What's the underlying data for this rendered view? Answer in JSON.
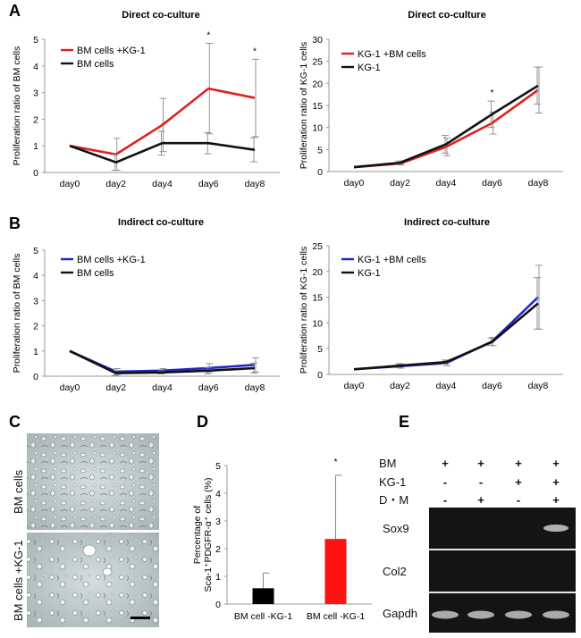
{
  "panels": {
    "A": "A",
    "B": "B",
    "C": "C",
    "D": "D",
    "E": "E"
  },
  "chart_data": [
    {
      "id": "A-left",
      "type": "line",
      "title": "Direct co-culture",
      "ylabel": "Proliferation ratio of BM cells",
      "categories": [
        "day0",
        "day2",
        "day4",
        "day6",
        "day8"
      ],
      "ylim": [
        0,
        5
      ],
      "yticks": [
        "0",
        "1",
        "2",
        "3",
        "4",
        "5"
      ],
      "series": [
        {
          "name": "BM cells +KG-1",
          "color": "#e0201f",
          "values": [
            1.0,
            0.68,
            1.78,
            3.15,
            2.8
          ],
          "err": [
            0,
            0.6,
            1.0,
            1.7,
            1.45
          ]
        },
        {
          "name": "BM cells",
          "color": "#111111",
          "values": [
            1.0,
            0.38,
            1.1,
            1.1,
            0.85
          ],
          "err": [
            0,
            0.3,
            0.45,
            0.4,
            0.45
          ]
        }
      ],
      "annotations": [
        {
          "x": "day6",
          "text": "*"
        },
        {
          "x": "day8",
          "text": "*"
        }
      ]
    },
    {
      "id": "A-right",
      "type": "line",
      "title": "Direct co-culture",
      "ylabel": "Proliferation ratio of KG-1 cells",
      "categories": [
        "day0",
        "day2",
        "day4",
        "day6",
        "day8"
      ],
      "ylim": [
        0,
        30
      ],
      "yticks": [
        "0",
        "5",
        "10",
        "15",
        "20",
        "25",
        "30"
      ],
      "series": [
        {
          "name": "KG-1 +BM cells",
          "color": "#e0201f",
          "values": [
            1.0,
            1.8,
            5.6,
            11.0,
            18.5
          ],
          "err": [
            0,
            0.3,
            2.0,
            2.5,
            5.2
          ]
        },
        {
          "name": "KG-1",
          "color": "#111111",
          "values": [
            1.0,
            2.0,
            6.2,
            13.0,
            19.5
          ],
          "err": [
            0,
            0.4,
            2.0,
            3.0,
            4.2
          ]
        }
      ],
      "annotations": [
        {
          "x": "day6",
          "text": "*"
        }
      ]
    },
    {
      "id": "B-left",
      "type": "line",
      "title": "Indirect co-culture",
      "ylabel": "Proliferation ratio of BM cells",
      "categories": [
        "day0",
        "day2",
        "day4",
        "day6",
        "day8"
      ],
      "ylim": [
        0,
        5
      ],
      "yticks": [
        "0",
        "1",
        "2",
        "3",
        "4",
        "5"
      ],
      "series": [
        {
          "name": "BM cells +KG-1",
          "color": "#1f26c8",
          "values": [
            1.0,
            0.18,
            0.22,
            0.32,
            0.45
          ],
          "err": [
            0,
            0.12,
            0.08,
            0.18,
            0.28
          ]
        },
        {
          "name": "BM cells",
          "color": "#111111",
          "values": [
            1.0,
            0.12,
            0.15,
            0.22,
            0.32
          ],
          "err": [
            0,
            0.1,
            0.06,
            0.12,
            0.2
          ]
        }
      ],
      "annotations": []
    },
    {
      "id": "B-right",
      "type": "line",
      "title": "Indirect co-culture",
      "ylabel": "Proliferation ratio of KG-1 cells",
      "categories": [
        "day0",
        "day2",
        "day4",
        "day6",
        "day8"
      ],
      "ylim": [
        0,
        25
      ],
      "yticks": [
        "0",
        "5",
        "10",
        "15",
        "20",
        "25"
      ],
      "series": [
        {
          "name": "KG-1 +BM cells",
          "color": "#1f26c8",
          "values": [
            1.0,
            1.6,
            2.2,
            6.4,
            15.0
          ],
          "err": [
            0,
            0.4,
            0.5,
            0.8,
            6.2
          ]
        },
        {
          "name": "KG-1",
          "color": "#111111",
          "values": [
            1.0,
            1.7,
            2.4,
            6.3,
            13.8
          ],
          "err": [
            0,
            0.4,
            0.4,
            0.7,
            5.0
          ]
        }
      ],
      "annotations": []
    },
    {
      "id": "D",
      "type": "bar",
      "ylabel_line1": "Percentage of",
      "ylabel_line2": "Sca-1⁺PDGFR-α⁺ cells (%)",
      "categories": [
        "BM cell -KG-1",
        "BM cell -KG-1"
      ],
      "values": [
        0.57,
        2.35
      ],
      "err": [
        0.55,
        2.3
      ],
      "colors": [
        "#000000",
        "#ff1212"
      ],
      "ylim": [
        0,
        5
      ],
      "yticks": [
        "0",
        "1",
        "2",
        "3",
        "4",
        "5"
      ],
      "annotations": [
        {
          "index": 1,
          "text": "*"
        }
      ]
    }
  ],
  "panel_c": {
    "top_label": "BM cells",
    "bottom_label": "BM cells +KG-1",
    "top_label_color": "#000000",
    "bottom_label_color": "#e0201f"
  },
  "panel_e": {
    "row_labels": [
      "BM",
      "KG-1",
      "D・M"
    ],
    "rows": [
      [
        "+",
        "+",
        "+",
        "+"
      ],
      [
        "-",
        "-",
        "+",
        "+"
      ],
      [
        "-",
        "+",
        "-",
        "+"
      ]
    ],
    "bands": [
      "Sox9",
      "Col2",
      "Gapdh"
    ],
    "sox9_intensity": [
      0,
      0,
      0,
      0.8
    ],
    "gapdh_intensity": [
      0.8,
      0.8,
      0.8,
      0.8
    ]
  }
}
